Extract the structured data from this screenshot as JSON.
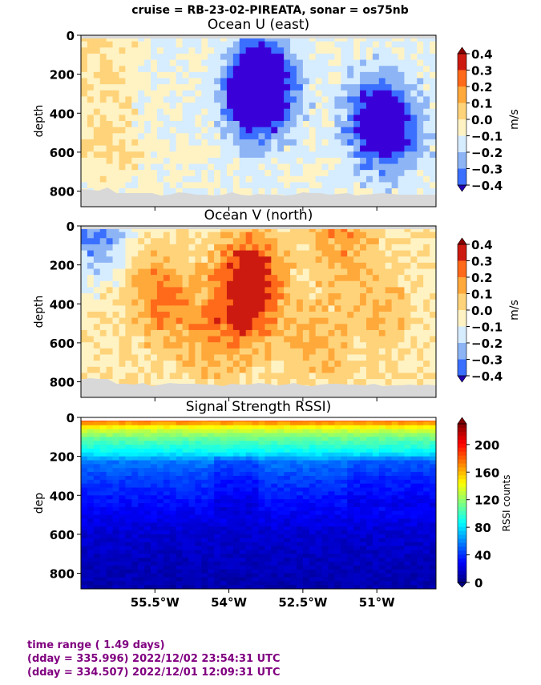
{
  "suptitle": "cruise = RB-23-02-PIREATA,  sonar = os75nb",
  "info": {
    "line1": "time range ( 1.49 days)",
    "line2": "(dday = 335.996) 2022/12/02 23:54:31 UTC",
    "line3": "(dday = 334.507) 2022/12/01 12:09:31 UTC"
  },
  "chart_data": [
    {
      "type": "heatmap",
      "title": "Ocean U (east)",
      "ylabel": "depth",
      "yticks": [
        "0",
        "200",
        "400",
        "600",
        "800"
      ],
      "ylim": [
        880,
        0
      ],
      "xlim": [
        57.0,
        49.8
      ],
      "x_hidden_ticks": [
        55.5,
        54.0,
        52.5,
        51.0
      ],
      "colorbar": {
        "label": "m/s",
        "ticks": [
          "0.4",
          "0.3",
          "0.2",
          "0.1",
          "0.0",
          "−0.1",
          "−0.2",
          "−0.3",
          "−0.4"
        ],
        "range": [
          -0.4,
          0.4
        ],
        "colors": [
          "#3a00d8",
          "#3a6fff",
          "#8db4f5",
          "#d6ecff",
          "#fff3c4",
          "#ffd37a",
          "#ffa93b",
          "#ff6a1a",
          "#cc1a10"
        ]
      },
      "features": [
        {
          "lon": 53.3,
          "depth": 230,
          "value": -0.38
        },
        {
          "lon": 53.5,
          "depth": 330,
          "value": -0.3
        },
        {
          "lon": 51.0,
          "depth": 430,
          "value": -0.3
        },
        {
          "lon": 50.7,
          "depth": 500,
          "value": -0.22
        },
        {
          "lon": 56.7,
          "depth": 80,
          "value": 0.12
        },
        {
          "lon": 56.4,
          "depth": 560,
          "value": 0.1
        }
      ]
    },
    {
      "type": "heatmap",
      "title": "Ocean V (north)",
      "ylabel": "depth",
      "yticks": [
        "0",
        "200",
        "400",
        "600",
        "800"
      ],
      "ylim": [
        880,
        0
      ],
      "xlim": [
        57.0,
        49.8
      ],
      "x_hidden_ticks": [
        55.5,
        54.0,
        52.5,
        51.0
      ],
      "colorbar": {
        "label": "m/s",
        "ticks": [
          "0.4",
          "0.3",
          "0.2",
          "0.1",
          "0.0",
          "−0.1",
          "−0.2",
          "−0.3",
          "−0.4"
        ],
        "range": [
          -0.4,
          0.4
        ],
        "colors": [
          "#3a00d8",
          "#3a6fff",
          "#8db4f5",
          "#d6ecff",
          "#fff3c4",
          "#ffd37a",
          "#ffa93b",
          "#ff6a1a",
          "#cc1a10"
        ]
      },
      "features": [
        {
          "lon": 53.6,
          "depth": 260,
          "value": 0.35
        },
        {
          "lon": 53.6,
          "depth": 450,
          "value": 0.15
        },
        {
          "lon": 55.4,
          "depth": 360,
          "value": 0.22
        },
        {
          "lon": 54.4,
          "depth": 560,
          "value": 0.15
        },
        {
          "lon": 52.2,
          "depth": 600,
          "value": 0.12
        },
        {
          "lon": 51.7,
          "depth": 60,
          "value": 0.18
        },
        {
          "lon": 50.9,
          "depth": 450,
          "value": 0.12
        },
        {
          "lon": 56.7,
          "depth": 40,
          "value": -0.25
        }
      ]
    },
    {
      "type": "heatmap",
      "title": "Signal Strength RSSI)",
      "ylabel": "dep",
      "yticks": [
        "0",
        "200",
        "400",
        "600",
        "800"
      ],
      "ylim": [
        880,
        0
      ],
      "xlim": [
        57.0,
        49.8
      ],
      "xticks": [
        {
          "lon": 55.5,
          "label": "55.5°W"
        },
        {
          "lon": 54.0,
          "label": "54°W"
        },
        {
          "lon": 52.5,
          "label": "52.5°W"
        },
        {
          "lon": 51.0,
          "label": "51°W"
        }
      ],
      "colorbar": {
        "label": "RSSI counts",
        "ticks": [
          "200",
          "160",
          "120",
          "80",
          "40",
          "0"
        ],
        "range": [
          0,
          230
        ]
      },
      "profile": [
        {
          "depth": 20,
          "value": 175
        },
        {
          "depth": 60,
          "value": 135
        },
        {
          "depth": 120,
          "value": 105
        },
        {
          "depth": 180,
          "value": 85
        },
        {
          "depth": 230,
          "value": 55
        },
        {
          "depth": 320,
          "value": 42
        },
        {
          "depth": 450,
          "value": 30
        },
        {
          "depth": 600,
          "value": 18
        },
        {
          "depth": 880,
          "value": 10
        }
      ]
    }
  ]
}
